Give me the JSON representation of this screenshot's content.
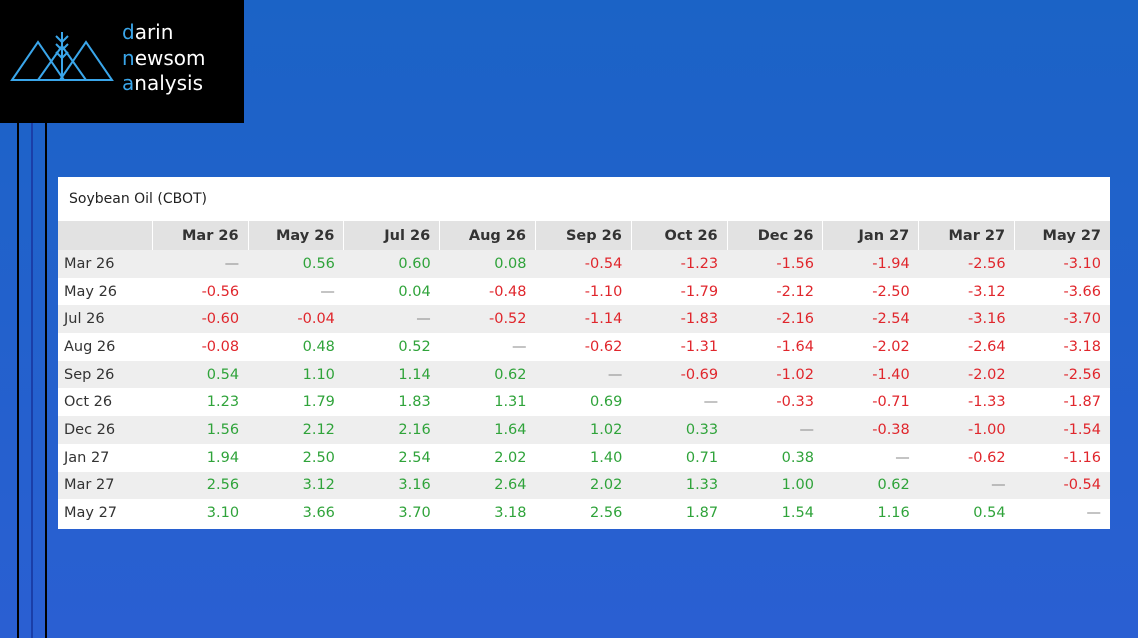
{
  "logo": {
    "lines": [
      "darin",
      "newsom",
      "analysis"
    ]
  },
  "table": {
    "title": "Soybean Oil (CBOT)",
    "columns": [
      "Mar 26",
      "May 26",
      "Jul 26",
      "Aug 26",
      "Sep 26",
      "Oct 26",
      "Dec 26",
      "Jan 27",
      "Mar 27",
      "May 27"
    ],
    "rows": [
      {
        "label": "Mar 26",
        "cells": [
          "—",
          "0.56",
          "0.60",
          "0.08",
          "-0.54",
          "-1.23",
          "-1.56",
          "-1.94",
          "-2.56",
          "-3.10"
        ]
      },
      {
        "label": "May 26",
        "cells": [
          "-0.56",
          "—",
          "0.04",
          "-0.48",
          "-1.10",
          "-1.79",
          "-2.12",
          "-2.50",
          "-3.12",
          "-3.66"
        ]
      },
      {
        "label": "Jul 26",
        "cells": [
          "-0.60",
          "-0.04",
          "—",
          "-0.52",
          "-1.14",
          "-1.83",
          "-2.16",
          "-2.54",
          "-3.16",
          "-3.70"
        ]
      },
      {
        "label": "Aug 26",
        "cells": [
          "-0.08",
          "0.48",
          "0.52",
          "—",
          "-0.62",
          "-1.31",
          "-1.64",
          "-2.02",
          "-2.64",
          "-3.18"
        ]
      },
      {
        "label": "Sep 26",
        "cells": [
          "0.54",
          "1.10",
          "1.14",
          "0.62",
          "—",
          "-0.69",
          "-1.02",
          "-1.40",
          "-2.02",
          "-2.56"
        ]
      },
      {
        "label": "Oct 26",
        "cells": [
          "1.23",
          "1.79",
          "1.83",
          "1.31",
          "0.69",
          "—",
          "-0.33",
          "-0.71",
          "-1.33",
          "-1.87"
        ]
      },
      {
        "label": "Dec 26",
        "cells": [
          "1.56",
          "2.12",
          "2.16",
          "1.64",
          "1.02",
          "0.33",
          "—",
          "-0.38",
          "-1.00",
          "-1.54"
        ]
      },
      {
        "label": "Jan 27",
        "cells": [
          "1.94",
          "2.50",
          "2.54",
          "2.02",
          "1.40",
          "0.71",
          "0.38",
          "—",
          "-0.62",
          "-1.16"
        ]
      },
      {
        "label": "Mar 27",
        "cells": [
          "2.56",
          "3.12",
          "3.16",
          "2.64",
          "2.02",
          "1.33",
          "1.00",
          "0.62",
          "—",
          "-0.54"
        ]
      },
      {
        "label": "May 27",
        "cells": [
          "3.10",
          "3.66",
          "3.70",
          "3.18",
          "2.56",
          "1.87",
          "1.54",
          "1.16",
          "0.54",
          "—"
        ]
      }
    ]
  }
}
